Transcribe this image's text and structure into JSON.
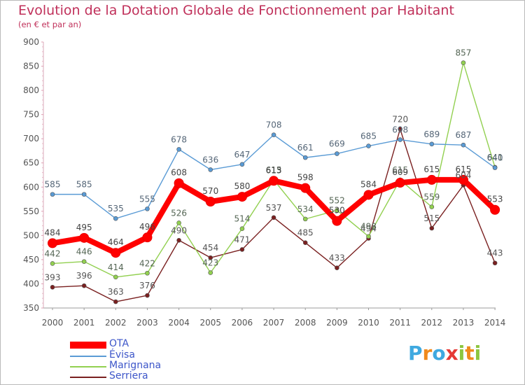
{
  "title": "Evolution de la Dotation Globale de Fonctionnement par Habitant",
  "subtitle": "(en € et par an)",
  "logo": {
    "letters": [
      "P",
      "r",
      "o",
      "x",
      "i",
      "t",
      "i"
    ],
    "colors": [
      "#3fa9e0",
      "#f08a1c",
      "#3fa9e0",
      "#e53935",
      "#8dc63f",
      "#f08a1c",
      "#8dc63f"
    ]
  },
  "chart_data": {
    "type": "line",
    "title": "Evolution de la Dotation Globale de Fonctionnement par Habitant",
    "subtitle": "(en € et par an)",
    "x": [
      "2000",
      "2001",
      "2002",
      "2003",
      "2004",
      "2005",
      "2006",
      "2007",
      "2008",
      "2009",
      "2010",
      "2011",
      "2012",
      "2013",
      "2014"
    ],
    "ylim": [
      350,
      900
    ],
    "yticks": [
      350,
      400,
      450,
      500,
      550,
      600,
      650,
      700,
      750,
      800,
      850,
      900
    ],
    "grid": false,
    "legend_position": "bottom-left",
    "series": [
      {
        "name": "OTA",
        "color": "#ff0000",
        "values": [
          484,
          495,
          464,
          496,
          608,
          570,
          580,
          613,
          598,
          530,
          584,
          609,
          615,
          615,
          553
        ],
        "labels": [
          "484",
          "495",
          "464",
          "496",
          "608",
          "570",
          "580",
          "613",
          "598",
          "530",
          "584",
          "609",
          "615",
          "615",
          "553"
        ]
      },
      {
        "name": "Évisa",
        "color": "#5a9bd5",
        "values": [
          585,
          585,
          535,
          555,
          678,
          636,
          647,
          708,
          661,
          669,
          685,
          698,
          689,
          687,
          640
        ],
        "labels": [
          "585",
          "585",
          "535",
          "555",
          "678",
          "636",
          "647",
          "708",
          "661",
          "669",
          "685",
          "698",
          "689",
          "687",
          "640"
        ]
      },
      {
        "name": "Marignana",
        "color": "#92d050",
        "values": [
          442,
          446,
          414,
          422,
          526,
          423,
          514,
          615,
          534,
          552,
          498,
          615,
          559,
          857,
          641
        ],
        "labels": [
          "442",
          "446",
          "414",
          "422",
          "526",
          "423",
          "514",
          "615",
          "534",
          "552",
          "498",
          "615",
          "559",
          "857",
          "641"
        ]
      },
      {
        "name": "Serriera",
        "color": "#7a2020",
        "values": [
          393,
          396,
          363,
          376,
          490,
          454,
          471,
          537,
          485,
          433,
          494,
          720,
          515,
          604,
          443
        ],
        "labels": [
          "393",
          "396",
          "363",
          "376",
          "490",
          "454",
          "471",
          "537",
          "485",
          "433",
          "494",
          "720",
          "515",
          "604",
          "443"
        ]
      }
    ]
  }
}
